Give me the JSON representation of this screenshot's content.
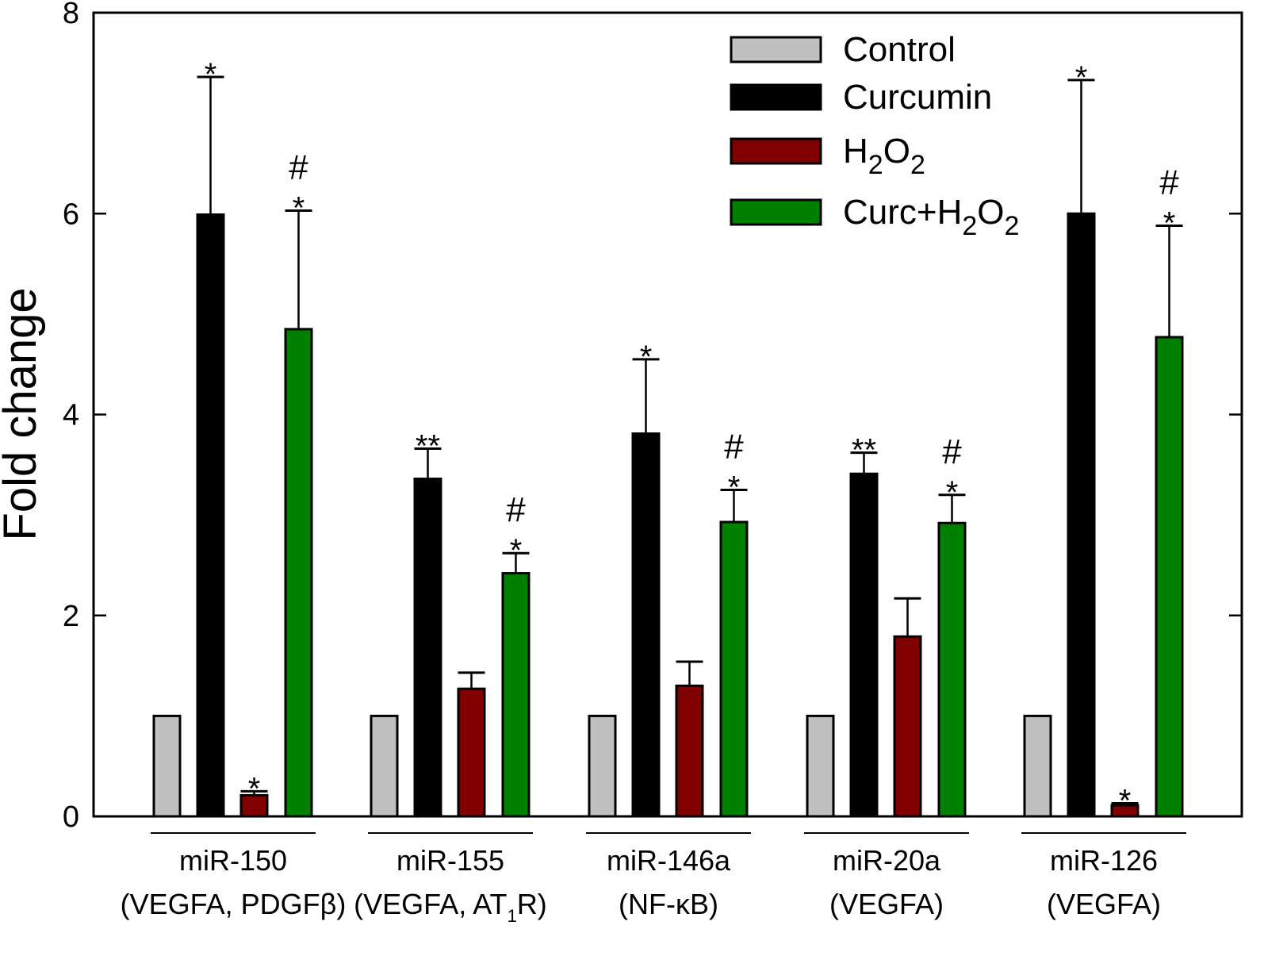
{
  "chart_data": {
    "type": "bar",
    "title": "",
    "xlabel": "",
    "ylabel": "Fold change",
    "ylim": [
      0,
      8
    ],
    "yticks": [
      0,
      2,
      4,
      6,
      8
    ],
    "grid": false,
    "legend_position": "top-right",
    "categories": [
      {
        "name": "miR-150",
        "targets": "(VEGFA, PDGFβ)"
      },
      {
        "name": "miR-155",
        "targets_pre": "(VEGFA, AT",
        "targets_sub": "1",
        "targets_post": "R)"
      },
      {
        "name": "miR-146a",
        "targets": "(NF-κB)"
      },
      {
        "name": "miR-20a",
        "targets": "(VEGFA)"
      },
      {
        "name": "miR-126",
        "targets": "(VEGFA)"
      }
    ],
    "series": [
      {
        "name": "Control",
        "legend_label": {
          "text": "Control"
        },
        "color": "#c0c0c0",
        "values": [
          1.0,
          1.0,
          1.0,
          1.0,
          1.0
        ],
        "error_upper": [
          null,
          null,
          null,
          null,
          null
        ],
        "annotations": [
          "",
          "",
          "",
          "",
          ""
        ]
      },
      {
        "name": "Curcumin",
        "legend_label": {
          "text": "Curcumin"
        },
        "color": "#000000",
        "values": [
          5.99,
          3.36,
          3.81,
          3.41,
          6.0
        ],
        "error_upper": [
          7.36,
          3.66,
          4.55,
          3.62,
          7.33
        ],
        "annotations": [
          "*",
          "**",
          "*",
          "**",
          "*"
        ]
      },
      {
        "name": "H2O2",
        "legend_label": {
          "parts": [
            [
              "H",
              ""
            ],
            [
              "2",
              "sub"
            ],
            [
              "O",
              ""
            ],
            [
              "2",
              "sub"
            ]
          ]
        },
        "color": "#800000",
        "values": [
          0.21,
          1.27,
          1.3,
          1.79,
          0.11
        ],
        "error_upper": [
          0.25,
          1.43,
          1.54,
          2.17,
          0.13
        ],
        "annotations": [
          "*",
          "",
          "",
          "",
          "*"
        ]
      },
      {
        "name": "Curc+H2O2",
        "legend_label": {
          "parts": [
            [
              "Curc+H",
              ""
            ],
            [
              "2",
              "sub"
            ],
            [
              "O",
              ""
            ],
            [
              "2",
              "sub"
            ]
          ]
        },
        "color": "#008000",
        "values": [
          4.85,
          2.42,
          2.93,
          2.92,
          4.77
        ],
        "error_upper": [
          6.03,
          2.62,
          3.25,
          3.2,
          5.88
        ],
        "annotations": [
          "#\n*",
          "#\n*",
          "#\n*",
          "#\n*",
          "#\n*"
        ]
      }
    ]
  }
}
